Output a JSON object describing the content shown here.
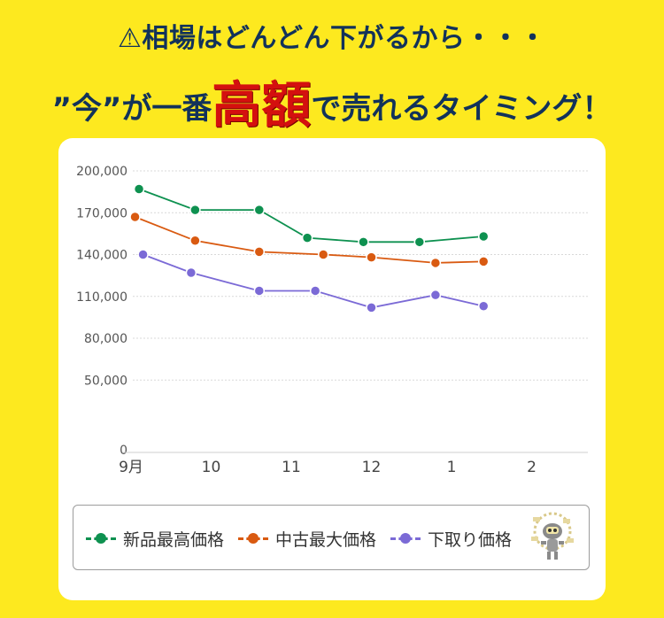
{
  "headline": {
    "line1": "⚠相場はどんどん下がるから・・・",
    "line2_before": "”今”が一番",
    "line2_emphasis": "高額",
    "line2_after": "で売れるタイミング！"
  },
  "chart_data": {
    "type": "line",
    "x": [
      "9月",
      "10",
      "11",
      "12",
      "1",
      "2"
    ],
    "ylim": [
      0,
      200000
    ],
    "yticks": [
      "0",
      "50,000",
      "80,000",
      "110,000",
      "140,000",
      "170,000",
      "200,000"
    ],
    "grid": true,
    "legend_position": "bottom",
    "series": [
      {
        "name": "新品最高価格",
        "color": "#0e9150",
        "points": [
          [
            0.1,
            187000
          ],
          [
            0.8,
            172000
          ],
          [
            1.6,
            172000
          ],
          [
            2.2,
            152000
          ],
          [
            2.9,
            149000
          ],
          [
            3.6,
            149000
          ],
          [
            4.4,
            153000
          ]
        ]
      },
      {
        "name": "中古最大価格",
        "color": "#d95a11",
        "points": [
          [
            0.05,
            167000
          ],
          [
            0.8,
            150000
          ],
          [
            1.6,
            142000
          ],
          [
            2.4,
            140000
          ],
          [
            3.0,
            138000
          ],
          [
            3.8,
            134000
          ],
          [
            4.4,
            135000
          ]
        ]
      },
      {
        "name": "下取り価格",
        "color": "#7b6ad6",
        "points": [
          [
            0.15,
            140000
          ],
          [
            0.75,
            127000
          ],
          [
            1.6,
            114000
          ],
          [
            2.3,
            114000
          ],
          [
            3.0,
            102000
          ],
          [
            3.8,
            111000
          ],
          [
            4.4,
            103000
          ]
        ]
      }
    ]
  }
}
